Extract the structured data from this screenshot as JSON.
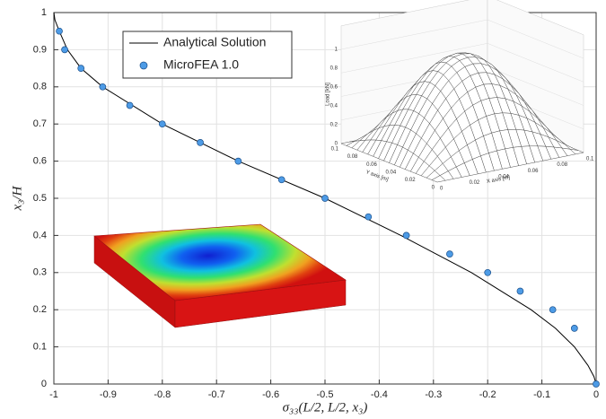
{
  "chart_data": {
    "type": "line",
    "xlabel": "σ₃₃(L/2, L/2, x₃)",
    "ylabel": "x₃/H",
    "xlim": [
      -1,
      0
    ],
    "ylim": [
      0,
      1
    ],
    "xticks": [
      -1,
      -0.9,
      -0.8,
      -0.7,
      -0.6,
      -0.5,
      -0.4,
      -0.3,
      -0.2,
      -0.1,
      0
    ],
    "yticks": [
      0,
      0.1,
      0.2,
      0.3,
      0.4,
      0.5,
      0.6,
      0.7,
      0.8,
      0.9,
      1
    ],
    "grid": true,
    "legend": "top-left",
    "series": [
      {
        "name": "Analytical Solution",
        "type": "line",
        "color": "#000000",
        "x": [
          -1,
          -0.998,
          -0.99,
          -0.975,
          -0.95,
          -0.91,
          -0.8,
          -0.66,
          -0.5,
          -0.36,
          -0.23,
          -0.12,
          -0.075,
          -0.04,
          -0.015,
          -0.004,
          0
        ],
        "values": [
          1,
          0.98,
          0.95,
          0.9,
          0.85,
          0.8,
          0.7,
          0.6,
          0.5,
          0.4,
          0.3,
          0.2,
          0.15,
          0.1,
          0.05,
          0.02,
          0
        ]
      },
      {
        "name": "MicroFEA 1.0",
        "type": "scatter",
        "color": "#4d9be6",
        "x": [
          -0.99,
          -0.98,
          -0.95,
          -0.91,
          -0.86,
          -0.8,
          -0.73,
          -0.66,
          -0.58,
          -0.5,
          -0.42,
          -0.35,
          -0.27,
          -0.2,
          -0.14,
          -0.08,
          -0.04,
          0
        ],
        "values": [
          0.95,
          0.9,
          0.85,
          0.8,
          0.75,
          0.7,
          0.65,
          0.6,
          0.55,
          0.5,
          0.45,
          0.4,
          0.35,
          0.3,
          0.25,
          0.2,
          0.15,
          0
        ]
      }
    ]
  },
  "inset": {
    "z_label": "Load [kN]",
    "y_label": "Y axis [m]",
    "x_label": "X axis [m]",
    "zticks": [
      0,
      0.2,
      0.4,
      0.6,
      0.8,
      1
    ],
    "yticks": [
      0,
      0.02,
      0.04,
      0.06,
      0.08,
      0.1
    ],
    "xticks": [
      0,
      0.02,
      0.04,
      0.06,
      0.08,
      0.1
    ]
  }
}
